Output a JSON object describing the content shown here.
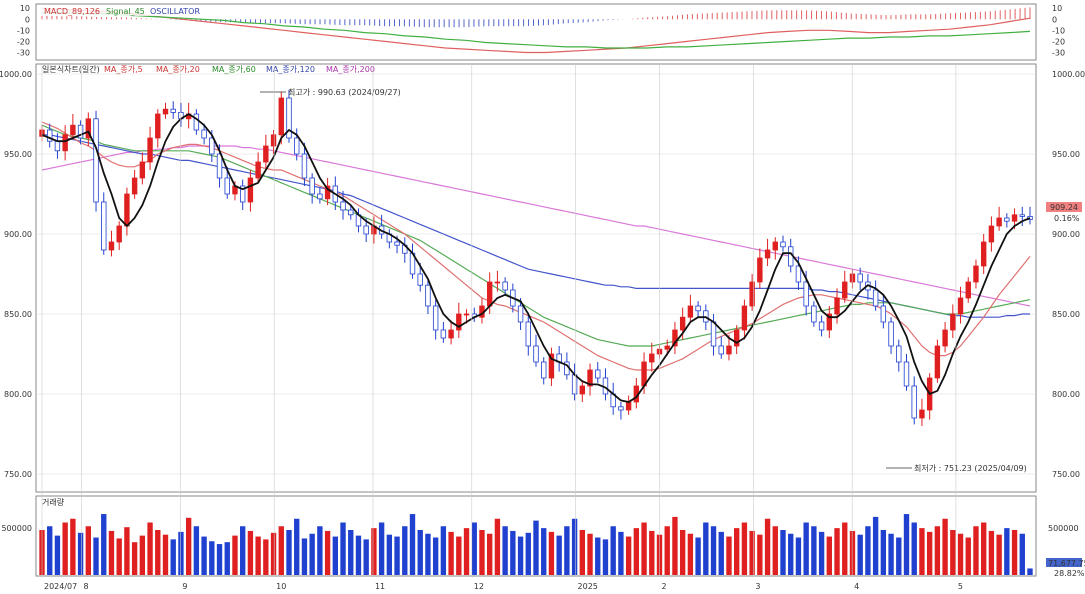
{
  "chart_data": [
    {
      "type": "bar",
      "panel": "oscillator",
      "legend": {
        "macd": "MACD_89,126",
        "signal": "Signal_45",
        "osc": "OSCILLATOR"
      },
      "yticks": [
        "10",
        "0",
        "-10",
        "-20",
        "-30"
      ],
      "ylim": [
        -35,
        12
      ],
      "x": [
        0,
        5,
        10,
        15,
        20,
        25,
        30,
        35,
        40,
        45,
        50,
        55,
        60,
        65,
        70,
        75,
        80,
        85,
        90,
        95,
        100,
        105,
        110,
        115,
        120,
        125,
        130,
        135,
        140,
        145,
        150,
        155,
        160,
        165,
        170,
        175,
        180,
        185,
        190,
        195,
        200,
        205,
        210,
        215,
        220,
        225,
        230,
        235,
        240,
        245
      ],
      "macd": [
        10,
        9,
        8,
        7,
        6,
        4,
        2,
        0,
        -2,
        -4,
        -6,
        -8,
        -10,
        -12,
        -14,
        -16,
        -18,
        -20,
        -22,
        -24,
        -26,
        -27,
        -28,
        -29,
        -30,
        -30,
        -29,
        -28,
        -27,
        -26,
        -24,
        -22,
        -20,
        -18,
        -16,
        -14,
        -12,
        -11,
        -10,
        -10,
        -11,
        -12,
        -12,
        -11,
        -10,
        -9,
        -7,
        -5,
        -2,
        1
      ],
      "signal": [
        6,
        6,
        5,
        5,
        4,
        3,
        2,
        1,
        0,
        -1,
        -3,
        -4,
        -6,
        -7,
        -9,
        -10,
        -12,
        -13,
        -15,
        -16,
        -18,
        -19,
        -21,
        -22,
        -23,
        -24,
        -25,
        -25,
        -26,
        -26,
        -26,
        -25,
        -25,
        -24,
        -23,
        -22,
        -21,
        -20,
        -19,
        -18,
        -17,
        -17,
        -16,
        -16,
        -15,
        -15,
        -14,
        -13,
        -12,
        -11
      ]
    },
    {
      "type": "candlestick",
      "panel": "price",
      "legend": [
        "일본식차트(일간)",
        "MA_종가,5",
        "MA_종가,20",
        "MA_종가,60",
        "MA_종가,120",
        "MA_종가,200"
      ],
      "yticks": [
        "1000.00",
        "950.00",
        "900.00",
        "850.00",
        "800.00",
        "750.00"
      ],
      "ylim": [
        740,
        1005
      ],
      "annotations": {
        "high": "최고가 : 990.63 (2024/09/27)",
        "low": "최저가 : 751.23 (2025/04/09)",
        "price_box": "909.24",
        "pct_box": "0.16%"
      },
      "x_tick_labels": [
        "2024/07",
        "8",
        "9",
        "10",
        "11",
        "12",
        "2025",
        "2",
        "3",
        "4",
        "5"
      ],
      "closes": [
        965,
        958,
        952,
        962,
        968,
        960,
        972,
        920,
        890,
        895,
        905,
        925,
        935,
        945,
        960,
        975,
        978,
        976,
        972,
        975,
        965,
        960,
        950,
        935,
        925,
        930,
        920,
        935,
        945,
        955,
        962,
        985,
        960,
        950,
        935,
        925,
        922,
        930,
        920,
        915,
        912,
        905,
        900,
        905,
        900,
        895,
        893,
        888,
        875,
        868,
        855,
        840,
        835,
        840,
        850,
        850,
        848,
        855,
        870,
        870,
        865,
        855,
        845,
        830,
        820,
        810,
        825,
        820,
        812,
        800,
        805,
        815,
        810,
        800,
        792,
        790,
        795,
        805,
        820,
        825,
        828,
        830,
        840,
        848,
        855,
        852,
        845,
        830,
        825,
        830,
        840,
        855,
        870,
        885,
        890,
        895,
        892,
        880,
        870,
        855,
        845,
        840,
        850,
        860,
        870,
        875,
        870,
        865,
        855,
        845,
        830,
        820,
        805,
        785,
        790,
        810,
        830,
        840,
        850,
        860,
        870,
        880,
        895,
        905,
        910,
        908,
        912,
        911,
        909
      ],
      "ma5": [
        962,
        960,
        958,
        958,
        960,
        962,
        964,
        954,
        938,
        925,
        910,
        905,
        910,
        918,
        930,
        945,
        958,
        967,
        972,
        975,
        972,
        968,
        962,
        952,
        940,
        930,
        928,
        930,
        932,
        940,
        948,
        960,
        965,
        962,
        955,
        945,
        935,
        928,
        925,
        922,
        918,
        912,
        908,
        905,
        902,
        900,
        897,
        893,
        888,
        880,
        872,
        860,
        850,
        845,
        842,
        845,
        848,
        850,
        855,
        860,
        862,
        860,
        858,
        850,
        840,
        830,
        822,
        820,
        818,
        812,
        808,
        806,
        806,
        804,
        800,
        796,
        795,
        798,
        805,
        812,
        818,
        825,
        832,
        838,
        845,
        848,
        848,
        845,
        840,
        835,
        832,
        835,
        842,
        852,
        865,
        878,
        888,
        888,
        882,
        872,
        862,
        852,
        848,
        848,
        852,
        858,
        864,
        868,
        866,
        862,
        855,
        846,
        836,
        820,
        808,
        800,
        802,
        812,
        825,
        836,
        845,
        856,
        868,
        880,
        890,
        900,
        905,
        908,
        910
      ],
      "ma20": [
        970,
        968,
        966,
        963,
        960,
        957,
        955,
        952,
        948,
        945,
        943,
        942,
        942,
        944,
        946,
        950,
        952,
        954,
        955,
        956,
        956,
        955,
        954,
        952,
        950,
        948,
        946,
        944,
        942,
        941,
        940,
        940,
        938,
        936,
        934,
        932,
        930,
        928,
        926,
        924,
        921,
        918,
        915,
        912,
        909,
        906,
        903,
        900,
        896,
        892,
        888,
        884,
        880,
        876,
        872,
        868,
        864,
        860,
        858,
        856,
        855,
        853,
        851,
        849,
        847,
        845,
        842,
        839,
        836,
        833,
        830,
        827,
        824,
        822,
        820,
        818,
        816,
        815,
        815,
        815,
        816,
        818,
        820,
        822,
        825,
        828,
        831,
        834,
        836,
        838,
        840,
        842,
        844,
        847,
        850,
        853,
        856,
        858,
        860,
        861,
        862,
        862,
        861,
        860,
        859,
        858,
        857,
        856,
        855,
        853,
        850,
        846,
        842,
        836,
        830,
        826,
        824,
        824,
        826,
        830,
        836,
        842,
        848,
        855,
        862,
        868,
        874,
        880,
        886
      ],
      "ma60": [
        968,
        966,
        964,
        962,
        961,
        960,
        959,
        958,
        956,
        955,
        954,
        953,
        952,
        952,
        952,
        952,
        952,
        952,
        952,
        952,
        951,
        950,
        949,
        948,
        946,
        944,
        942,
        940,
        938,
        936,
        934,
        932,
        930,
        928,
        926,
        924,
        922,
        920,
        918,
        916,
        914,
        912,
        910,
        908,
        906,
        904,
        902,
        900,
        898,
        896,
        893,
        890,
        887,
        884,
        881,
        878,
        875,
        872,
        869,
        866,
        863,
        860,
        857,
        854,
        851,
        848,
        846,
        844,
        842,
        840,
        838,
        836,
        834,
        833,
        832,
        831,
        830,
        830,
        830,
        830,
        831,
        832,
        833,
        834,
        835,
        836,
        837,
        838,
        839,
        840,
        841,
        842,
        843,
        844,
        845,
        846,
        847,
        848,
        849,
        850,
        851,
        852,
        853,
        854,
        855,
        856,
        856,
        857,
        857,
        857,
        857,
        856,
        855,
        854,
        853,
        852,
        851,
        850,
        850,
        850,
        851,
        852,
        853,
        854,
        855,
        856,
        857,
        858,
        859
      ],
      "ma120": [
        962,
        962,
        961,
        960,
        959,
        958,
        957,
        956,
        955,
        954,
        953,
        952,
        951,
        950,
        950,
        949,
        948,
        947,
        946,
        946,
        945,
        944,
        943,
        942,
        941,
        940,
        939,
        938,
        937,
        936,
        935,
        934,
        933,
        932,
        931,
        930,
        929,
        928,
        927,
        925,
        924,
        922,
        920,
        918,
        916,
        914,
        912,
        910,
        908,
        906,
        904,
        902,
        900,
        898,
        896,
        894,
        892,
        890,
        888,
        886,
        884,
        882,
        880,
        878,
        877,
        876,
        875,
        874,
        873,
        872,
        871,
        870,
        869,
        868,
        868,
        867,
        867,
        866,
        866,
        866,
        866,
        866,
        866,
        866,
        866,
        866,
        866,
        866,
        866,
        866,
        866,
        866,
        866,
        866,
        866,
        866,
        866,
        866,
        866,
        866,
        865,
        865,
        864,
        864,
        863,
        862,
        861,
        860,
        859,
        858,
        857,
        856,
        855,
        854,
        853,
        852,
        851,
        850,
        849,
        849,
        848,
        848,
        848,
        848,
        848,
        849,
        849,
        850,
        850
      ],
      "ma200": [
        940,
        941,
        942,
        943,
        944,
        945,
        946,
        947,
        948,
        949,
        950,
        951,
        951,
        952,
        952,
        953,
        953,
        954,
        954,
        955,
        955,
        955,
        955,
        955,
        955,
        955,
        954,
        954,
        953,
        953,
        952,
        951,
        950,
        949,
        948,
        947,
        946,
        945,
        944,
        943,
        942,
        941,
        940,
        939,
        938,
        937,
        936,
        935,
        934,
        933,
        932,
        931,
        930,
        929,
        928,
        927,
        926,
        925,
        924,
        923,
        922,
        921,
        920,
        919,
        918,
        917,
        916,
        915,
        914,
        913,
        912,
        911,
        910,
        909,
        908,
        907,
        906,
        905,
        905,
        904,
        903,
        902,
        901,
        900,
        899,
        898,
        897,
        896,
        895,
        894,
        893,
        892,
        891,
        890,
        889,
        888,
        887,
        886,
        885,
        884,
        883,
        882,
        881,
        880,
        879,
        878,
        877,
        876,
        875,
        874,
        873,
        872,
        871,
        870,
        869,
        868,
        867,
        866,
        865,
        864,
        863,
        862,
        861,
        860,
        859,
        858,
        857,
        856,
        855
      ]
    },
    {
      "type": "bar",
      "panel": "volume",
      "title": "거래량",
      "yticks": [
        "500000"
      ],
      "ylim": [
        0,
        800000
      ],
      "tick_box": "71,677.75",
      "pct_box": "28.82%",
      "values": [
        480000,
        520000,
        420000,
        560000,
        600000,
        450000,
        520000,
        400000,
        650000,
        470000,
        390000,
        510000,
        350000,
        420000,
        560000,
        480000,
        430000,
        380000,
        460000,
        610000,
        520000,
        410000,
        360000,
        330000,
        350000,
        420000,
        520000,
        470000,
        410000,
        380000,
        450000,
        520000,
        480000,
        600000,
        390000,
        440000,
        520000,
        470000,
        410000,
        560000,
        480000,
        420000,
        380000,
        500000,
        560000,
        430000,
        410000,
        520000,
        650000,
        480000,
        440000,
        400000,
        520000,
        460000,
        410000,
        500000,
        560000,
        480000,
        440000,
        600000,
        520000,
        470000,
        410000,
        450000,
        580000,
        500000,
        460000,
        420000,
        520000,
        600000,
        480000,
        440000,
        400000,
        380000,
        520000,
        460000,
        410000,
        500000,
        560000,
        470000,
        430000,
        520000,
        620000,
        480000,
        440000,
        400000,
        560000,
        520000,
        460000,
        410000,
        500000,
        560000,
        470000,
        430000,
        600000,
        520000,
        480000,
        440000,
        400000,
        560000,
        520000,
        460000,
        410000,
        500000,
        560000,
        470000,
        430000,
        520000,
        620000,
        480000,
        440000,
        400000,
        650000,
        560000,
        500000,
        460000,
        520000,
        600000,
        480000,
        440000,
        400000,
        520000,
        560000,
        470000,
        430000,
        500000,
        480000,
        440000,
        70000
      ]
    }
  ]
}
